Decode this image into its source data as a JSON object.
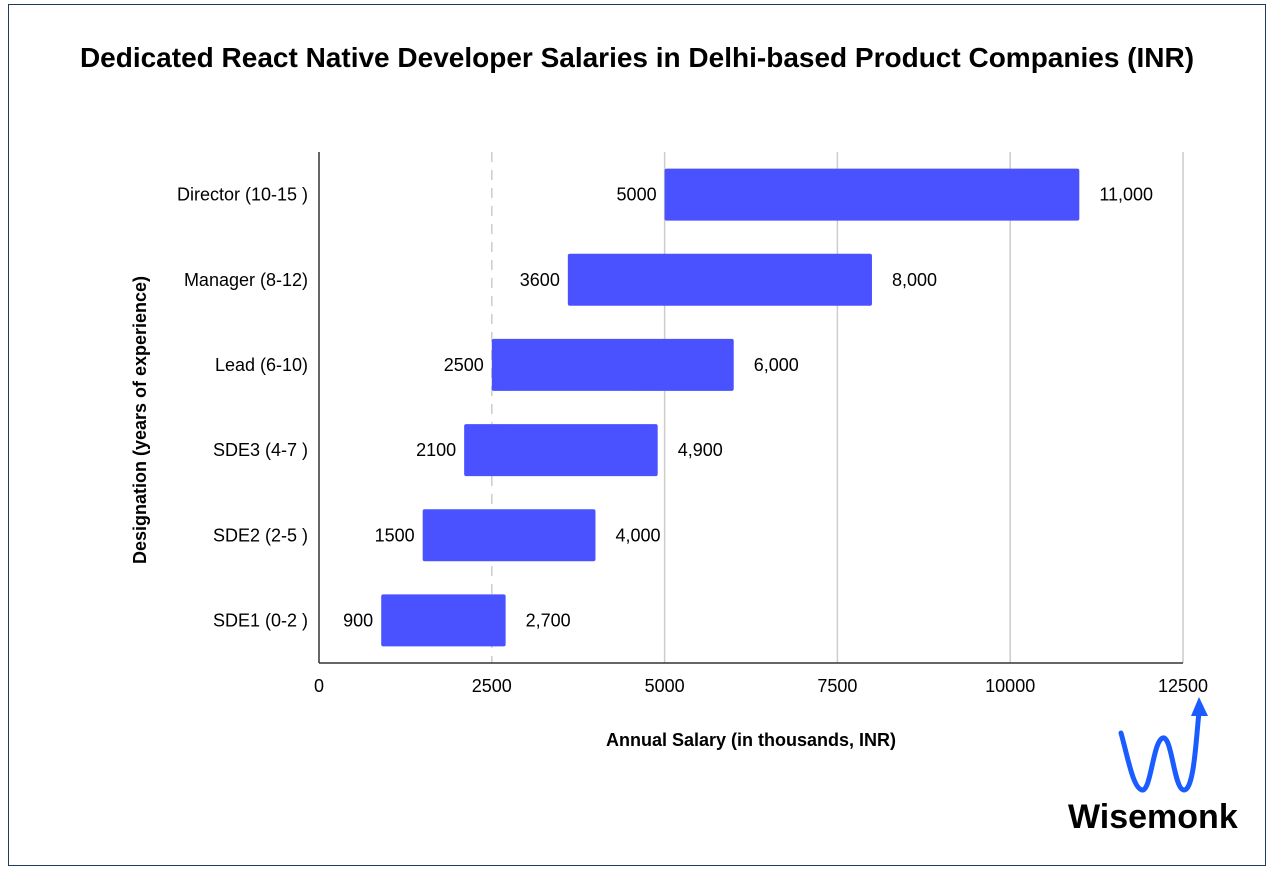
{
  "chart_data": {
    "type": "bar",
    "orientation": "horizontal",
    "subtype": "floating-range",
    "title": "Dedicated React Native Developer Salaries in Delhi-based Product Companies (INR)",
    "xlabel": "Annual Salary (in thousands, INR)",
    "ylabel": "Designation (years of experience)",
    "xlim": [
      0,
      12500
    ],
    "xticks": [
      "0",
      "2500",
      "5000",
      "7500",
      "10000",
      "12500"
    ],
    "xtick_values": [
      0,
      2500,
      5000,
      7500,
      10000,
      12500
    ],
    "grid": true,
    "bar_color": "#4a52ff",
    "categories": [
      "Director (10-15 )",
      "Manager (8-12)",
      "Lead (6-10)",
      "SDE3 (4-7 )",
      "SDE2 (2-5 )",
      "SDE1 (0-2 )"
    ],
    "min_values": [
      5000,
      3600,
      2500,
      2100,
      1500,
      900
    ],
    "max_values": [
      11000,
      8000,
      6000,
      4900,
      4000,
      2700
    ],
    "min_labels": [
      "5000",
      "3600",
      "2500",
      "2100",
      "1500",
      "900"
    ],
    "max_labels": [
      "11,000",
      "8,000",
      "6,000",
      "4,900",
      "4,000",
      "2,700"
    ]
  },
  "logo": {
    "text": "Wisemonk",
    "accent": "#1a5cff"
  }
}
